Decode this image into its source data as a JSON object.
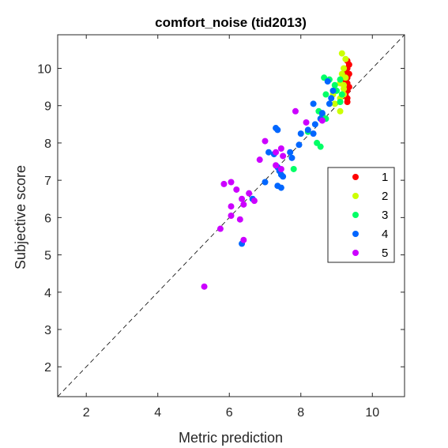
{
  "chart_data": {
    "type": "scatter",
    "title": "comfort_noise (tid2013)",
    "xlabel": "Metric prediction",
    "ylabel": "Subjective score",
    "xlim": [
      1.2,
      10.9
    ],
    "ylim": [
      1.2,
      10.9
    ],
    "xticks": [
      2,
      4,
      6,
      8,
      10
    ],
    "yticks": [
      2,
      3,
      4,
      5,
      6,
      7,
      8,
      9,
      10
    ],
    "grid": false,
    "box": true,
    "reference_line": {
      "style": "dashed",
      "from": [
        1.2,
        1.2
      ],
      "to": [
        10.9,
        10.9
      ]
    },
    "legend_position": "right-center",
    "series": [
      {
        "name": "1",
        "color": "#ff0000",
        "points": [
          [
            9.3,
            10.2
          ],
          [
            9.35,
            10.1
          ],
          [
            9.3,
            10.0
          ],
          [
            9.25,
            9.9
          ],
          [
            9.35,
            9.85
          ],
          [
            9.3,
            9.75
          ],
          [
            9.2,
            9.7
          ],
          [
            9.3,
            9.6
          ],
          [
            9.35,
            9.5
          ],
          [
            9.3,
            9.4
          ],
          [
            9.25,
            9.3
          ],
          [
            9.3,
            9.2
          ],
          [
            9.3,
            9.1
          ]
        ]
      },
      {
        "name": "2",
        "color": "#ccff00",
        "points": [
          [
            9.15,
            10.4
          ],
          [
            9.25,
            10.25
          ],
          [
            9.2,
            10.0
          ],
          [
            9.15,
            9.85
          ],
          [
            9.25,
            9.75
          ],
          [
            9.1,
            9.6
          ],
          [
            9.2,
            9.55
          ],
          [
            9.0,
            9.4
          ],
          [
            9.2,
            9.3
          ],
          [
            8.9,
            9.3
          ],
          [
            9.1,
            9.2
          ],
          [
            9.2,
            9.45
          ],
          [
            9.1,
            8.85
          ],
          [
            8.95,
            9.05
          ]
        ]
      },
      {
        "name": "3",
        "color": "#00ff66",
        "points": [
          [
            8.65,
            9.75
          ],
          [
            8.8,
            9.7
          ],
          [
            8.95,
            9.55
          ],
          [
            9.1,
            9.7
          ],
          [
            9.0,
            9.4
          ],
          [
            9.1,
            9.1
          ],
          [
            9.15,
            9.3
          ],
          [
            8.7,
            9.3
          ],
          [
            8.5,
            8.85
          ],
          [
            8.6,
            8.75
          ],
          [
            8.7,
            8.65
          ],
          [
            8.2,
            8.3
          ],
          [
            8.45,
            8.0
          ],
          [
            8.55,
            7.9
          ],
          [
            7.8,
            7.3
          ]
        ]
      },
      {
        "name": "4",
        "color": "#0066ff",
        "points": [
          [
            8.75,
            9.65
          ],
          [
            8.9,
            9.4
          ],
          [
            8.85,
            9.2
          ],
          [
            8.8,
            9.05
          ],
          [
            8.6,
            8.8
          ],
          [
            8.55,
            8.65
          ],
          [
            8.35,
            9.05
          ],
          [
            8.4,
            8.5
          ],
          [
            8.2,
            8.35
          ],
          [
            8.35,
            8.25
          ],
          [
            8.0,
            8.25
          ],
          [
            7.95,
            7.95
          ],
          [
            7.7,
            7.75
          ],
          [
            7.35,
            8.35
          ],
          [
            7.3,
            8.4
          ],
          [
            7.25,
            7.7
          ],
          [
            7.1,
            7.75
          ],
          [
            7.35,
            7.35
          ],
          [
            7.4,
            7.25
          ],
          [
            7.45,
            7.15
          ],
          [
            7.5,
            7.1
          ],
          [
            7.0,
            6.95
          ],
          [
            7.35,
            6.85
          ],
          [
            7.45,
            6.8
          ],
          [
            6.65,
            6.5
          ],
          [
            6.35,
            5.3
          ],
          [
            7.75,
            7.6
          ]
        ]
      },
      {
        "name": "5",
        "color": "#cc00ff",
        "points": [
          [
            8.6,
            8.6
          ],
          [
            8.15,
            8.55
          ],
          [
            7.85,
            8.85
          ],
          [
            7.0,
            8.05
          ],
          [
            6.85,
            7.55
          ],
          [
            7.3,
            7.75
          ],
          [
            7.45,
            7.85
          ],
          [
            7.5,
            7.65
          ],
          [
            7.3,
            7.4
          ],
          [
            7.45,
            7.3
          ],
          [
            6.05,
            6.95
          ],
          [
            6.2,
            6.75
          ],
          [
            6.35,
            6.5
          ],
          [
            6.55,
            6.65
          ],
          [
            6.7,
            6.45
          ],
          [
            6.05,
            6.3
          ],
          [
            6.4,
            6.35
          ],
          [
            6.05,
            6.05
          ],
          [
            6.3,
            5.95
          ],
          [
            5.75,
            5.7
          ],
          [
            6.4,
            5.4
          ],
          [
            5.3,
            4.15
          ],
          [
            5.85,
            6.9
          ]
        ]
      }
    ]
  }
}
